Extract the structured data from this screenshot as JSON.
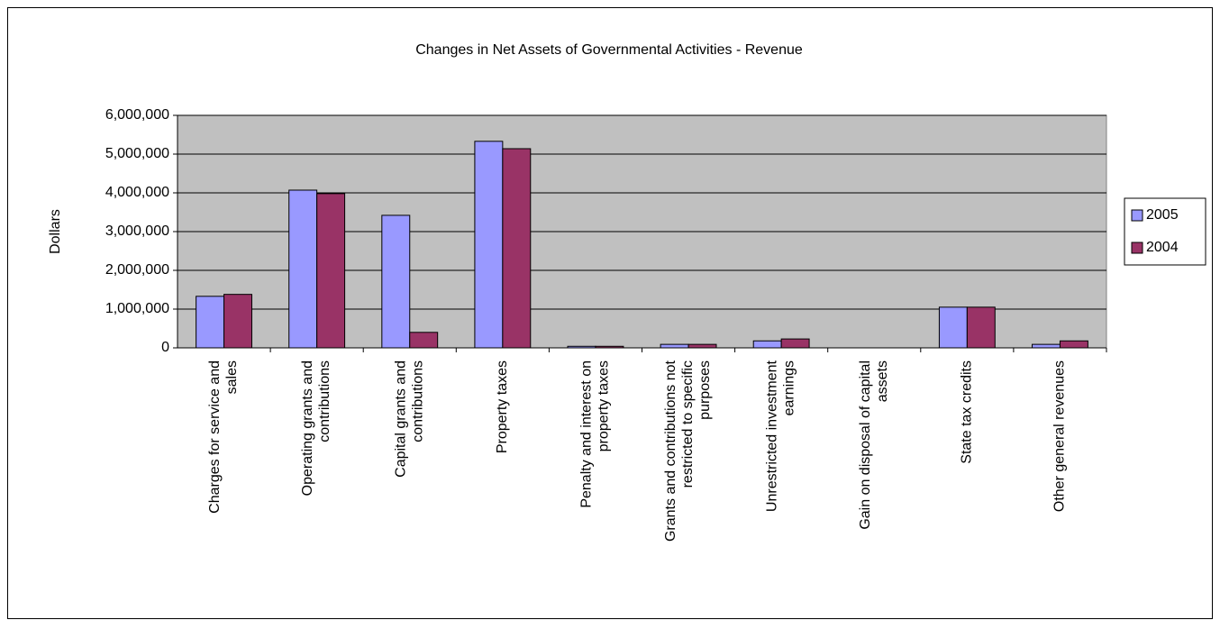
{
  "chart_data": {
    "type": "bar",
    "title": "Changes in Net Assets of Governmental Activities - Revenue",
    "y_label": "Dollars",
    "categories": [
      "Charges for service and sales",
      "Operating grants and contributions",
      "Capital grants and contributions",
      "Property taxes",
      "Penalty and interest on property taxes",
      "Grants and contributions not restricted to specific purposes",
      "Unrestricted investment earnings",
      "Gain on disposal of capital assets",
      "State tax credits",
      "Other general revenues"
    ],
    "series": [
      {
        "name": "2005",
        "color": "#9999ff",
        "values": [
          1330000,
          4070000,
          3420000,
          5330000,
          40000,
          90000,
          180000,
          0,
          1050000,
          90000
        ]
      },
      {
        "name": "2004",
        "color": "#993366",
        "values": [
          1380000,
          3980000,
          400000,
          5140000,
          40000,
          90000,
          230000,
          0,
          1050000,
          180000
        ]
      }
    ],
    "ylim": [
      0,
      6000000
    ],
    "yticks": [
      0,
      {
        "value": 1000000,
        "label": "1,000,000"
      },
      {
        "value": 2000000,
        "label": "2,000,000"
      },
      {
        "value": 3000000,
        "label": "3,000,000"
      },
      {
        "value": 4000000,
        "label": "4,000,000"
      },
      {
        "value": 5000000,
        "label": "5,000,000"
      },
      {
        "value": 6000000,
        "label": "6,000,000"
      }
    ],
    "grid": true,
    "legend": "right",
    "plot_background": "#c0c0c0"
  }
}
